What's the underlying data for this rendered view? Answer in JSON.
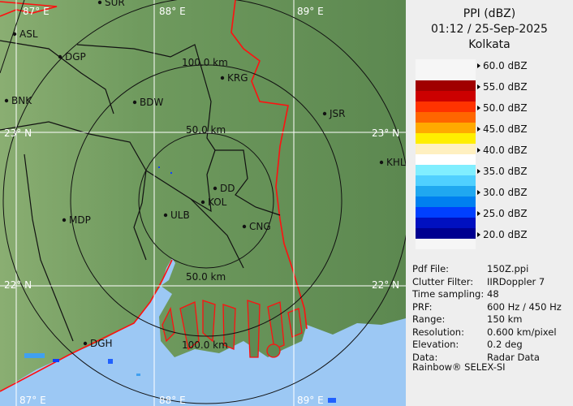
{
  "header": {
    "product": "PPI (dBZ)",
    "datetime": "01:12 / 25-Sep-2025",
    "site": "Kolkata"
  },
  "color_scale": [
    {
      "label": "60.0 dBZ",
      "colors": [
        "#f6f6f6",
        "#f6f6f6"
      ]
    },
    {
      "label": "55.0 dBZ",
      "colors": [
        "#a00000",
        "#cc0000"
      ]
    },
    {
      "label": "50.0 dBZ",
      "colors": [
        "#ff3300",
        "#ff6600"
      ]
    },
    {
      "label": "45.0 dBZ",
      "colors": [
        "#ffaa00",
        "#ffee00"
      ]
    },
    {
      "label": "40.0 dBZ",
      "colors": [
        "#fff0c0",
        "#ffffff"
      ]
    },
    {
      "label": "35.0 dBZ",
      "colors": [
        "#80eeff",
        "#50d0ff"
      ]
    },
    {
      "label": "30.0 dBZ",
      "colors": [
        "#20a8f0",
        "#0080f0"
      ]
    },
    {
      "label": "25.0 dBZ",
      "colors": [
        "#0040ff",
        "#0010c0"
      ]
    },
    {
      "label": "20.0 dBZ",
      "colors": [
        "#000090",
        "#f6f6f6"
      ]
    }
  ],
  "info": [
    {
      "key": "Pdf File:",
      "value": "150Z.ppi"
    },
    {
      "key": "Clutter Filter:",
      "value": "IIRDoppler 7"
    },
    {
      "key": "Time sampling:",
      "value": "48"
    },
    {
      "key": "PRF:",
      "value": "600 Hz / 450 Hz"
    },
    {
      "key": "Range:",
      "value": "150 km"
    },
    {
      "key": "Resolution:",
      "value": "0.600 km/pixel"
    },
    {
      "key": "Elevation:",
      "value": "0.2 deg"
    },
    {
      "key": "Data:",
      "value": "Radar Data"
    }
  ],
  "credit": "Rainbow® SELEX-SI",
  "map": {
    "grid_labels": {
      "lon": [
        "87° E",
        "88° E",
        "89° E"
      ],
      "lat": [
        "23° N",
        "22° N"
      ]
    },
    "range_rings": [
      "50.0 km",
      "100.0 km"
    ],
    "cities": [
      "SUR",
      "ASL",
      "DGP",
      "BNK",
      "BDW",
      "KRG",
      "JSR",
      "KHL",
      "DD",
      "KOL",
      "ULB",
      "MDP",
      "CNG",
      "DGH"
    ],
    "colors": {
      "land": "#5e8a52",
      "sea": "#9cc8f4",
      "border": "#ff1010",
      "district": "#111111",
      "grid": "#ffffff"
    }
  }
}
